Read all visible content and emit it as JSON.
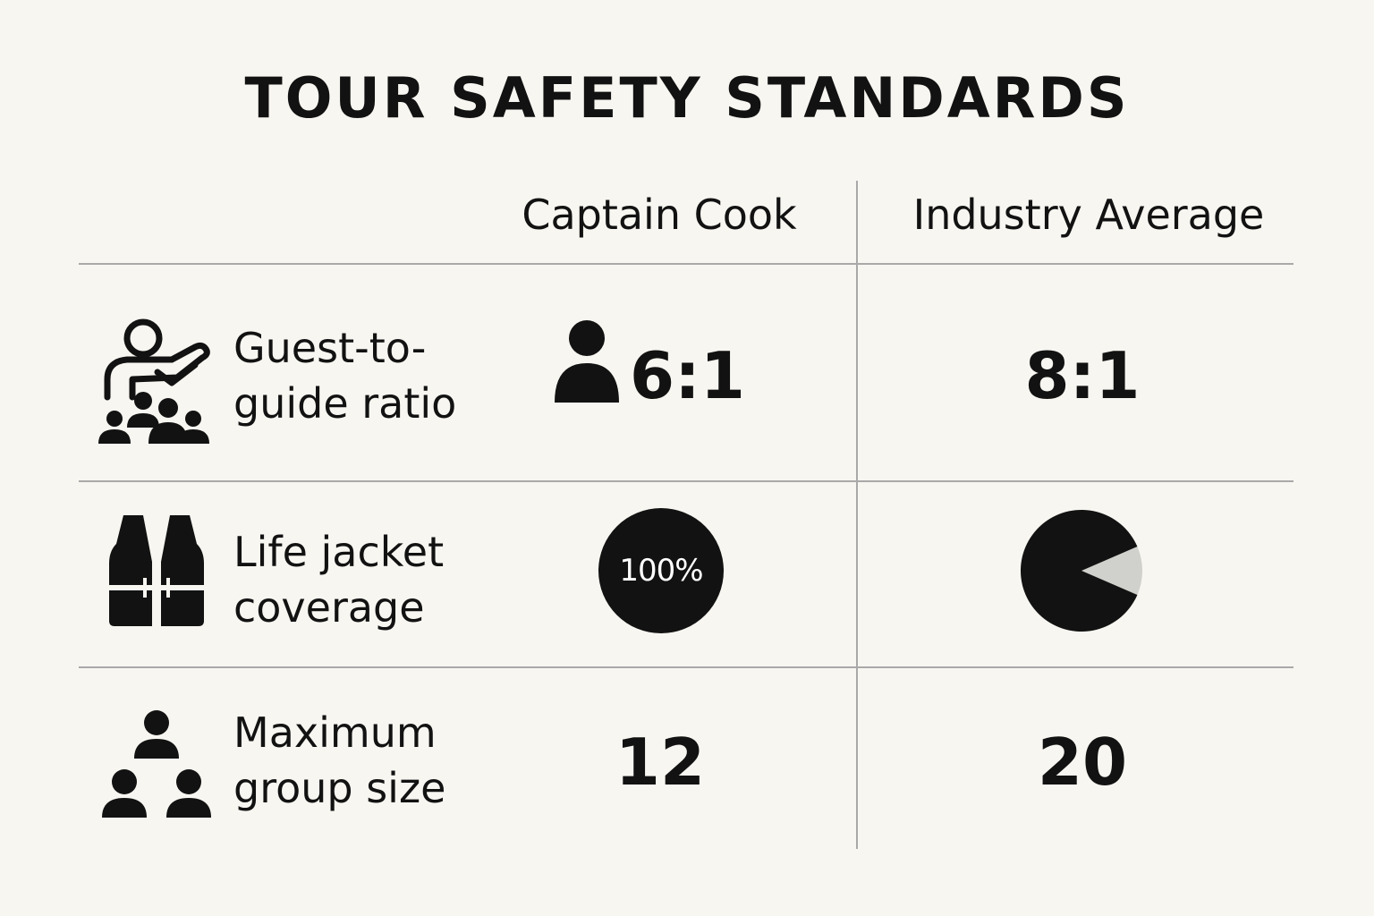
{
  "title": "TOUR SAFETY STANDARDS",
  "columns": {
    "captain": "Captain Cook",
    "industry": "Industry Average"
  },
  "rows": [
    {
      "icon": "guide-with-group-icon",
      "label_line1": "Guest-to-",
      "label_line2": "guide ratio",
      "captain_value": "6:1",
      "captain_icon": "person-icon",
      "industry_value": "8:1"
    },
    {
      "icon": "life-jacket-icon",
      "label_line1": "Life jacket",
      "label_line2": "coverage",
      "captain_value": "100%",
      "captain_fraction": 1.0,
      "industry_fraction": 0.87
    },
    {
      "icon": "group-of-three-icon",
      "label_line1": "Maximum",
      "label_line2": "group size",
      "captain_value": "12",
      "industry_value": "20"
    }
  ],
  "colors": {
    "background": "#f8f6f1",
    "ink": "#121212",
    "divider": "#a9a9a9",
    "pie_remainder": "#d0d0cc"
  }
}
